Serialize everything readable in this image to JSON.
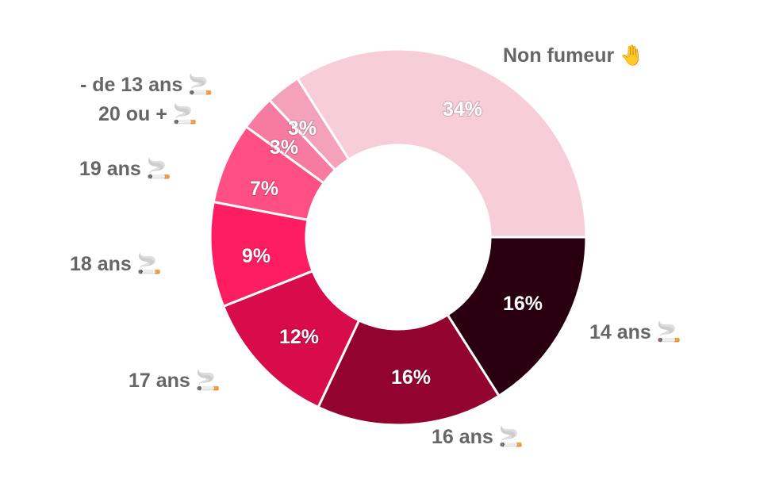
{
  "chart_data": {
    "type": "pie",
    "donut": true,
    "start_angle_deg": 0,
    "direction": "clockwise",
    "legend": "none",
    "slices": [
      {
        "label": "14 ans 🚬",
        "value": 16,
        "value_label": "16%",
        "color": "#2a0010"
      },
      {
        "label": "16 ans 🚬",
        "value": 16,
        "value_label": "16%",
        "color": "#930330"
      },
      {
        "label": "17 ans 🚬",
        "value": 12,
        "value_label": "12%",
        "color": "#d80b4b"
      },
      {
        "label": "18 ans 🚬",
        "value": 9,
        "value_label": "9%",
        "color": "#ff1d61"
      },
      {
        "label": "19 ans 🚬",
        "value": 7,
        "value_label": "7%",
        "color": "#ff4f85"
      },
      {
        "label": "20 ou + 🚬",
        "value": 3,
        "value_label": "3%",
        "color": "#f77aa1"
      },
      {
        "label": "- de 13 ans 🚬",
        "value": 3,
        "value_label": "3%",
        "color": "#f3a2ba"
      },
      {
        "label": "Non fumeur 🤚",
        "value": 34,
        "value_label": "34%",
        "color": "#f7cdda"
      }
    ]
  }
}
